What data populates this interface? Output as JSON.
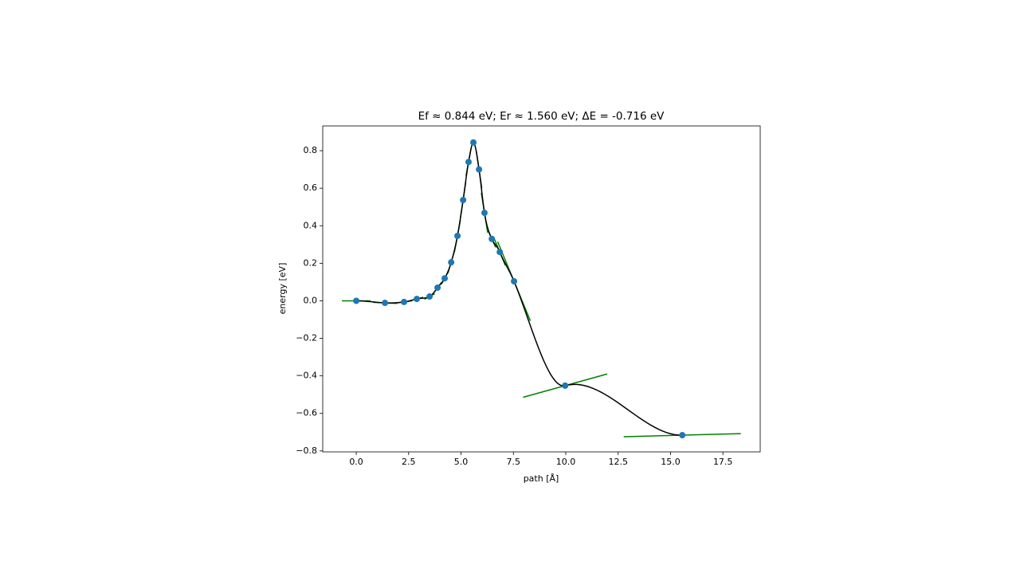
{
  "chart_data": {
    "type": "neb",
    "title": "Ef ≈ 0.844 eV; Er ≈ 1.560 eV; ΔE = -0.716 eV",
    "x_label": "path [Å]",
    "y_label": "energy [eV]",
    "x": [
      0.0,
      1.37,
      2.28,
      2.89,
      3.5,
      3.88,
      4.22,
      4.53,
      4.83,
      5.1,
      5.36,
      5.59,
      5.86,
      6.12,
      6.47,
      6.85,
      7.53,
      9.97,
      15.56
    ],
    "values": [
      0.0,
      -0.011,
      -0.006,
      0.01,
      0.023,
      0.07,
      0.12,
      0.205,
      0.346,
      0.537,
      0.74,
      0.844,
      0.7,
      0.469,
      0.33,
      0.26,
      0.104,
      -0.452,
      -0.716
    ],
    "slopes": [
      0.0,
      -0.005,
      0.015,
      0.03,
      0.06,
      0.15,
      0.2,
      0.38,
      0.6,
      0.75,
      0.6,
      0.0,
      -0.75,
      -0.7,
      -0.25,
      -0.27,
      -0.27,
      0.031,
      0.003
    ],
    "marker_color": "#1f77b4",
    "curve_color": "#000000",
    "tangent_color": "#008000",
    "xlim": [
      -1.6,
      19.28
    ],
    "ylim": [
      -0.805,
      0.932
    ],
    "xticks": [
      {
        "value": 0,
        "label": "0.0"
      },
      2.5,
      {
        "value": 5,
        "label": "5.0"
      },
      7.5,
      {
        "value": 10,
        "label": "10.0"
      },
      12.5,
      {
        "value": 15,
        "label": "15.0"
      },
      17.5
    ],
    "yticks": [
      {
        "value": -0.8,
        "label": "−0.8"
      },
      {
        "value": -0.6,
        "label": "−0.6"
      },
      {
        "value": -0.4,
        "label": "−0.4"
      },
      {
        "value": -0.2,
        "label": "−0.2"
      },
      {
        "value": 0,
        "label": "0.0"
      },
      0.2,
      0.4,
      0.6,
      0.8
    ]
  }
}
